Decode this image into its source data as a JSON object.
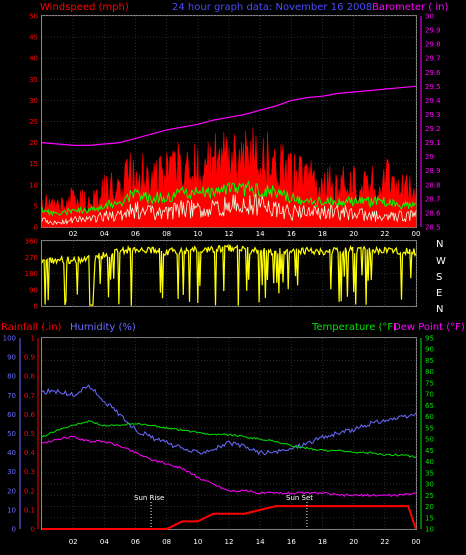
{
  "colors": {
    "background": "#000000",
    "axis_frame": "#8a8a8a",
    "wind_axis": "#ff0000",
    "baro_axis": "#ff00ff",
    "rain_axis": "#6a6aff",
    "humidity_axis": "#6a6aff",
    "temp_axis": "#00e000",
    "dew_axis": "#ff00ff",
    "direction": "#ffff00",
    "gust": "#ff0000",
    "avg_wind": "#00ff00",
    "low_wind": "#e0ffe0",
    "sun_marker": "#ffffff"
  },
  "header": {
    "wind_label": "Windspeed (mph)",
    "title": "24 hour graph data: November 16 2008",
    "baro_label": "Barometer ( in)"
  },
  "middle": {
    "compass": [
      "N",
      "W",
      "S",
      "E",
      "N"
    ]
  },
  "bottom_header": {
    "rain_label": "Rainfall (.in)",
    "humidity_label": "Humidity (%)",
    "temp_label": "Temperature (°F)",
    "dew_label": "Dew Point (°F)"
  },
  "annotations": {
    "sunrise": "Sun Rise",
    "sunset": "Sun Set"
  },
  "chart_data": [
    {
      "type": "line",
      "title": "24 hour graph data: November 16 2008",
      "x_ticks": [
        "02",
        "04",
        "06",
        "08",
        "10",
        "12",
        "14",
        "16",
        "18",
        "20",
        "22",
        "00"
      ],
      "xlim": [
        0,
        24
      ],
      "left_axis": {
        "label": "Windspeed (mph)",
        "ticks": [
          0,
          5,
          10,
          15,
          20,
          25,
          30,
          35,
          40,
          45,
          50
        ],
        "ylim": [
          0,
          50
        ]
      },
      "right_axis": {
        "label": "Barometer ( in)",
        "ticks": [
          "28.5",
          "28.6",
          "28.7",
          "28.8",
          "28.9",
          "29",
          "29.1",
          "29.2",
          "29.3",
          "29.4",
          "29.5",
          "29.6",
          "29.7",
          "29.8",
          "29.9",
          "30"
        ],
        "ylim": [
          28.5,
          30.0
        ]
      },
      "series": [
        {
          "key": "barometer",
          "axis": "right",
          "x": [
            0,
            1,
            2,
            3,
            4,
            5,
            6,
            7,
            8,
            9,
            10,
            11,
            12,
            13,
            14,
            15,
            16,
            17,
            18,
            19,
            20,
            21,
            22,
            23,
            24
          ],
          "values": [
            29.1,
            29.09,
            29.08,
            29.08,
            29.09,
            29.1,
            29.13,
            29.16,
            29.19,
            29.21,
            29.23,
            29.26,
            29.28,
            29.3,
            29.33,
            29.36,
            29.4,
            29.42,
            29.43,
            29.45,
            29.46,
            29.47,
            29.48,
            29.49,
            29.5
          ]
        },
        {
          "key": "gust",
          "axis": "left",
          "x": [
            0,
            1,
            2,
            3,
            4,
            5,
            6,
            7,
            8,
            9,
            10,
            11,
            12,
            13,
            14,
            15,
            16,
            17,
            18,
            19,
            20,
            21,
            22,
            23,
            24
          ],
          "values": [
            6,
            5,
            7,
            6,
            9,
            10,
            14,
            12,
            13,
            15,
            15,
            16,
            18,
            17,
            18,
            15,
            13,
            12,
            11,
            10,
            11,
            10,
            12,
            10,
            9
          ]
        },
        {
          "key": "average",
          "axis": "left",
          "x": [
            0,
            1,
            2,
            3,
            4,
            5,
            6,
            7,
            8,
            9,
            10,
            11,
            12,
            13,
            14,
            15,
            16,
            17,
            18,
            19,
            20,
            21,
            22,
            23,
            24
          ],
          "values": [
            4,
            3,
            4,
            4,
            5,
            6,
            8,
            7,
            7,
            8,
            8,
            8,
            9,
            9,
            9,
            8,
            7,
            6,
            6,
            6,
            6,
            6,
            6,
            5,
            5
          ]
        },
        {
          "key": "low",
          "axis": "left",
          "x": [
            0,
            1,
            2,
            3,
            4,
            5,
            6,
            7,
            8,
            9,
            10,
            11,
            12,
            13,
            14,
            15,
            16,
            17,
            18,
            19,
            20,
            21,
            22,
            23,
            24
          ],
          "values": [
            2,
            1,
            2,
            2,
            3,
            3,
            5,
            4,
            4,
            5,
            5,
            5,
            6,
            6,
            6,
            5,
            4,
            4,
            4,
            4,
            4,
            3,
            3,
            3,
            3
          ]
        }
      ]
    },
    {
      "type": "line",
      "x_ticks": [
        "02",
        "04",
        "06",
        "08",
        "10",
        "12",
        "14",
        "16",
        "18",
        "20",
        "22",
        "00"
      ],
      "xlim": [
        0,
        24
      ],
      "left_axis": {
        "ticks": [
          0,
          90,
          180,
          270,
          360
        ],
        "ylim": [
          0,
          360
        ]
      },
      "right_axis": {
        "ticks": [
          "N",
          "W",
          "S",
          "E",
          "N"
        ]
      },
      "series": [
        {
          "key": "wind_direction",
          "x": [
            0,
            2,
            3,
            4,
            6,
            8,
            10,
            12,
            14,
            16,
            18,
            20,
            22,
            24
          ],
          "values": [
            250,
            255,
            260,
            280,
            320,
            300,
            310,
            320,
            300,
            310,
            300,
            310,
            305,
            300
          ]
        }
      ]
    },
    {
      "type": "line",
      "x_ticks": [
        "02",
        "04",
        "06",
        "08",
        "10",
        "12",
        "14",
        "16",
        "18",
        "20",
        "22",
        "00"
      ],
      "xlim": [
        0,
        24
      ],
      "axes": {
        "rainfall": {
          "label": "Rainfall (.in)",
          "ticks": [
            "0",
            "0.1",
            "0.2",
            "0.3",
            "0.4",
            "0.5",
            "0.6",
            "0.7",
            "0.8",
            "0.9",
            "1"
          ],
          "ylim": [
            0,
            1
          ]
        },
        "humidity": {
          "label": "Humidity (%)",
          "ticks": [
            0,
            10,
            20,
            30,
            40,
            50,
            60,
            70,
            80,
            90,
            100
          ],
          "ylim": [
            0,
            100
          ]
        },
        "temperature": {
          "label": "Temperature (°F)",
          "ticks": [
            10,
            15,
            20,
            25,
            30,
            35,
            40,
            45,
            50,
            55,
            60,
            65,
            70,
            75,
            80,
            85,
            90,
            95
          ],
          "ylim": [
            10,
            95
          ]
        }
      },
      "series": [
        {
          "key": "humidity",
          "axis": "humidity",
          "x": [
            0,
            1,
            2,
            3,
            4,
            5,
            6,
            7,
            8,
            9,
            10,
            11,
            12,
            13,
            14,
            15,
            16,
            17,
            18,
            19,
            20,
            21,
            22,
            23,
            24
          ],
          "values": [
            72,
            72,
            70,
            75,
            67,
            60,
            52,
            48,
            45,
            42,
            40,
            42,
            45,
            43,
            40,
            40,
            42,
            45,
            48,
            50,
            52,
            55,
            57,
            58,
            60
          ]
        },
        {
          "key": "temperature",
          "axis": "temperature",
          "x": [
            0,
            1,
            2,
            3,
            4,
            5,
            6,
            7,
            8,
            9,
            10,
            11,
            12,
            13,
            14,
            15,
            16,
            17,
            18,
            19,
            20,
            21,
            22,
            23,
            24
          ],
          "values": [
            51,
            54,
            56,
            58,
            56,
            56,
            57,
            56,
            55,
            54,
            53,
            52,
            52,
            51,
            50,
            49,
            47,
            46,
            45,
            45,
            44,
            44,
            43,
            43,
            42
          ]
        },
        {
          "key": "dew_point",
          "axis": "temperature",
          "x": [
            0,
            1,
            2,
            3,
            4,
            5,
            6,
            7,
            8,
            9,
            10,
            11,
            12,
            13,
            14,
            15,
            16,
            17,
            18,
            19,
            20,
            21,
            22,
            23,
            24
          ],
          "values": [
            48,
            50,
            51,
            49,
            49,
            47,
            44,
            41,
            39,
            37,
            33,
            30,
            27,
            27,
            26,
            26,
            26,
            26,
            26,
            25,
            25,
            25,
            25,
            25,
            26
          ]
        },
        {
          "key": "rainfall",
          "axis": "rainfall",
          "x": [
            0,
            8,
            8.5,
            9,
            10,
            10.5,
            11,
            12,
            13,
            14,
            15,
            16,
            17,
            18,
            19,
            20,
            21,
            22,
            23,
            23.5,
            24
          ],
          "values": [
            0,
            0,
            0.02,
            0.04,
            0.04,
            0.06,
            0.08,
            0.08,
            0.08,
            0.1,
            0.12,
            0.12,
            0.12,
            0.12,
            0.12,
            0.12,
            0.12,
            0.12,
            0.12,
            0.12,
            0
          ]
        }
      ],
      "annotations": [
        {
          "label": "Sun Rise",
          "x": 7
        },
        {
          "label": "Sun Set",
          "x": 17
        }
      ]
    }
  ]
}
